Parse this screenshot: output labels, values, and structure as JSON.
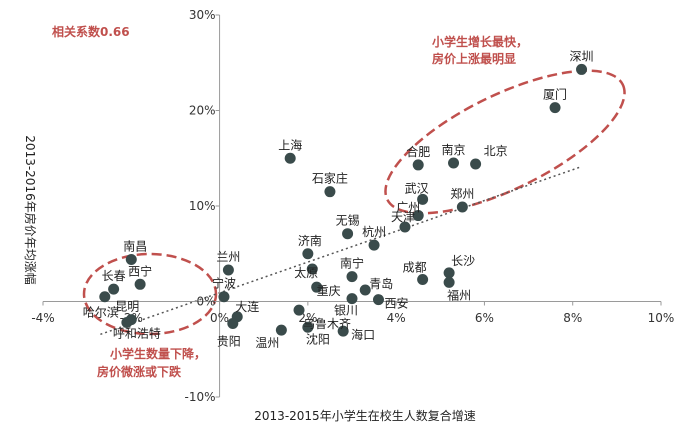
{
  "chart_data": {
    "type": "scatter",
    "xlabel": "2013-2015年小学生在校生人数复合增速",
    "ylabel": "2013-2016年房价年均涨幅",
    "xlim": [
      -4,
      10
    ],
    "ylim": [
      -10,
      30
    ],
    "xticks": [
      "-4%",
      "-2%",
      "0%",
      "2%",
      "4%",
      "6%",
      "8%",
      "10%"
    ],
    "yticks": [
      "-10%",
      "0%",
      "10%",
      "20%",
      "30%"
    ],
    "grid": false,
    "trendline": "linear-dotted",
    "points": [
      {
        "label": "深圳",
        "x": 8.2,
        "y": 24.3
      },
      {
        "label": "厦门",
        "x": 7.6,
        "y": 20.3
      },
      {
        "label": "合肥",
        "x": 4.5,
        "y": 14.3
      },
      {
        "label": "南京",
        "x": 5.3,
        "y": 14.5
      },
      {
        "label": "北京",
        "x": 5.8,
        "y": 14.4
      },
      {
        "label": "上海",
        "x": 1.6,
        "y": 15.0
      },
      {
        "label": "石家庄",
        "x": 2.5,
        "y": 11.5
      },
      {
        "label": "武汉",
        "x": 4.6,
        "y": 10.7
      },
      {
        "label": "广州",
        "x": 4.5,
        "y": 9.0
      },
      {
        "label": "郑州",
        "x": 5.5,
        "y": 9.9
      },
      {
        "label": "天津",
        "x": 4.2,
        "y": 7.8
      },
      {
        "label": "无锡",
        "x": 2.9,
        "y": 7.1
      },
      {
        "label": "杭州",
        "x": 3.5,
        "y": 5.9
      },
      {
        "label": "济南",
        "x": 2.0,
        "y": 5.0
      },
      {
        "label": "南昌",
        "x": -2.0,
        "y": 4.4
      },
      {
        "label": "兰州",
        "x": 0.2,
        "y": 3.3
      },
      {
        "label": "太原",
        "x": 2.1,
        "y": 3.4
      },
      {
        "label": "南宁",
        "x": 3.0,
        "y": 2.6
      },
      {
        "label": "成都",
        "x": 4.6,
        "y": 2.3
      },
      {
        "label": "长沙",
        "x": 5.2,
        "y": 3.0
      },
      {
        "label": "福州",
        "x": 5.2,
        "y": 2.0
      },
      {
        "label": "重庆",
        "x": 2.2,
        "y": 1.5
      },
      {
        "label": "青岛",
        "x": 3.3,
        "y": 1.2
      },
      {
        "label": "银川",
        "x": 3.0,
        "y": 0.3
      },
      {
        "label": "西安",
        "x": 3.6,
        "y": 0.2
      },
      {
        "label": "西宁",
        "x": -1.8,
        "y": 1.8
      },
      {
        "label": "长春",
        "x": -2.4,
        "y": 1.3
      },
      {
        "label": "哈尔滨",
        "x": -2.6,
        "y": 0.5
      },
      {
        "label": "宁波",
        "x": 0.1,
        "y": 0.5
      },
      {
        "label": "昆明",
        "x": -2.0,
        "y": -1.9
      },
      {
        "label": "呼和浩特",
        "x": -2.1,
        "y": -2.2
      },
      {
        "label": "大连",
        "x": 0.4,
        "y": -1.6
      },
      {
        "label": "贵阳",
        "x": 0.3,
        "y": -2.3
      },
      {
        "label": "乌鲁木齐",
        "x": 1.8,
        "y": -0.9
      },
      {
        "label": "温州",
        "x": 1.4,
        "y": -3.0
      },
      {
        "label": "沈阳",
        "x": 2.0,
        "y": -2.7
      },
      {
        "label": "海口",
        "x": 2.8,
        "y": -3.1
      }
    ],
    "annotations": {
      "correlation": "相关系数0.66",
      "top_group": [
        "小学生增长最快，",
        "房价上涨最明显"
      ],
      "bottom_group": [
        "小学生数量下降，",
        "房价微涨或下跌"
      ]
    },
    "colors": {
      "point": "#3a4b4b",
      "annotation": "#c0504d",
      "trendline": "#555555",
      "axis": "#9a9a9a"
    }
  }
}
